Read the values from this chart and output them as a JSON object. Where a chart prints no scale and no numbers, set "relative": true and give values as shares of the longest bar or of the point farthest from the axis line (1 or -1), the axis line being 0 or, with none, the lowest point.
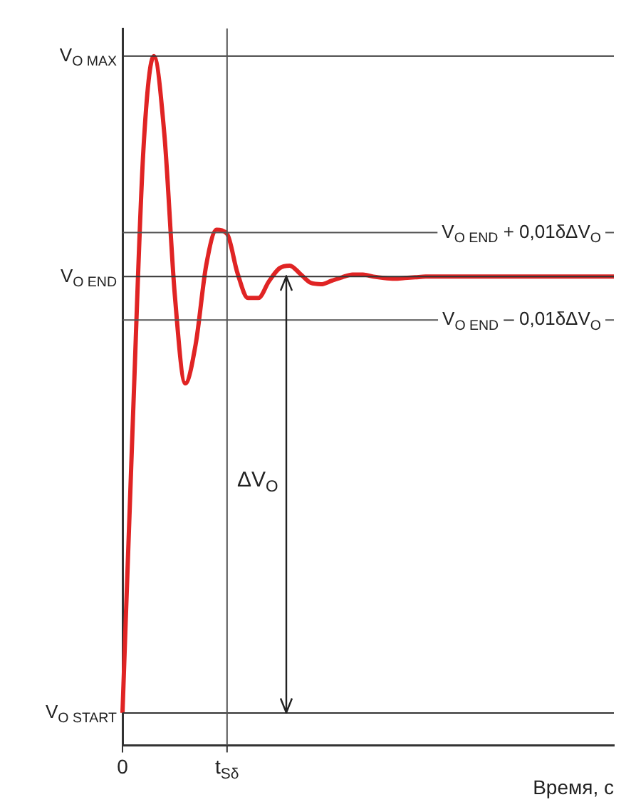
{
  "chart_data": {
    "type": "line",
    "relative": true,
    "xlabel": "Время, с",
    "categories": [
      "0",
      null,
      null,
      null,
      null,
      null,
      null,
      null,
      null,
      null,
      "t$_{Sδ}$",
      null,
      null,
      null,
      null,
      null,
      null,
      null,
      null,
      null,
      null,
      null,
      null,
      null,
      null,
      null,
      null,
      null,
      null,
      null,
      null,
      null,
      null,
      null,
      null,
      null,
      null,
      null,
      null,
      null,
      null,
      null,
      null,
      null,
      null,
      null,
      null,
      null
    ],
    "series": [
      {
        "color": "#e02424",
        "values": [
          0.047,
          0.475,
          0.864,
          1,
          0.887,
          0.654,
          0.525,
          0.582,
          0.696,
          0.748,
          0.742,
          0.685,
          0.649,
          0.649,
          0.673,
          0.692,
          0.696,
          0.684,
          0.671,
          0.669,
          0.674,
          0.679,
          0.683,
          0.683,
          0.68,
          0.678,
          0.677,
          0.678,
          0.679,
          0.68,
          0.68,
          0.68,
          0.68,
          0.68,
          0.68,
          0.68,
          0.68,
          0.68,
          0.68,
          0.68,
          0.68,
          0.68,
          0.68,
          0.68,
          0.68,
          0.68,
          0.68,
          0.68
        ]
      }
    ],
    "ref_lines": [
      {
        "axis": "y",
        "value": 1,
        "label": "V$_{O MAX}$",
        "color": "#333333"
      },
      {
        "axis": "y",
        "value": 0.68,
        "label": "V$_{O END}$",
        "color": "#333333"
      },
      {
        "axis": "y",
        "value": 0.047,
        "label": "V$_{O START}$",
        "color": "#333333"
      },
      {
        "axis": "y",
        "value": 0.744,
        "label": "V$_{O END}$ + 0,01δΔV$_{O}$",
        "color": "#555555"
      },
      {
        "axis": "y",
        "value": 0.617,
        "label": "V$_{O END}$ – 0,01δΔV$_{O}$",
        "color": "#555555"
      },
      {
        "axis": "x",
        "value": "t$_{Sδ}$",
        "color": "#555555"
      }
    ],
    "annotations": [
      "ΔV$_{O}$"
    ],
    "grid": false,
    "legend": false,
    "marker": "none",
    "line_style": "solid"
  }
}
